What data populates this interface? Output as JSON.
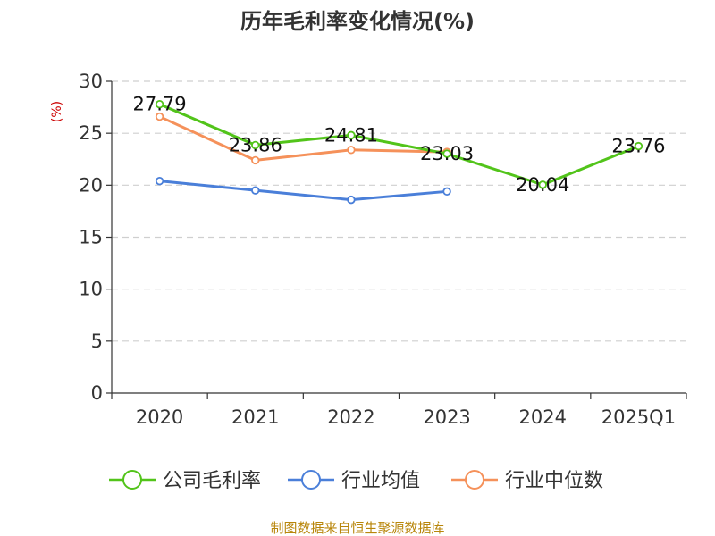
{
  "page": {
    "footer": "制图数据来自恒生聚源数据库",
    "footer_color": "#b8860b"
  },
  "chart_data": {
    "type": "line",
    "title": "历年毛利率变化情况(%)",
    "unit_label": "(%)",
    "unit_color": "#cc0000",
    "categories": [
      "2020",
      "2021",
      "2022",
      "2023",
      "2024",
      "2025Q1"
    ],
    "ylim": [
      0,
      30
    ],
    "yticks": [
      0,
      5,
      10,
      15,
      20,
      25,
      30
    ],
    "grid": true,
    "legend_position": "bottom",
    "series": [
      {
        "name": "公司毛利率",
        "color": "#52c41a",
        "show_labels": true,
        "values": [
          27.79,
          23.86,
          24.81,
          23.03,
          20.04,
          23.76
        ],
        "labels": [
          "27.79",
          "23.86",
          "24.81",
          "23.03",
          "20.04",
          "23.76"
        ]
      },
      {
        "name": "行业均值",
        "color": "#4a7fd9",
        "show_labels": false,
        "values": [
          20.4,
          19.5,
          18.6,
          19.4,
          null,
          null
        ]
      },
      {
        "name": "行业中位数",
        "color": "#f5915a",
        "show_labels": false,
        "values": [
          26.6,
          22.4,
          23.4,
          23.2,
          null,
          null
        ]
      }
    ]
  }
}
